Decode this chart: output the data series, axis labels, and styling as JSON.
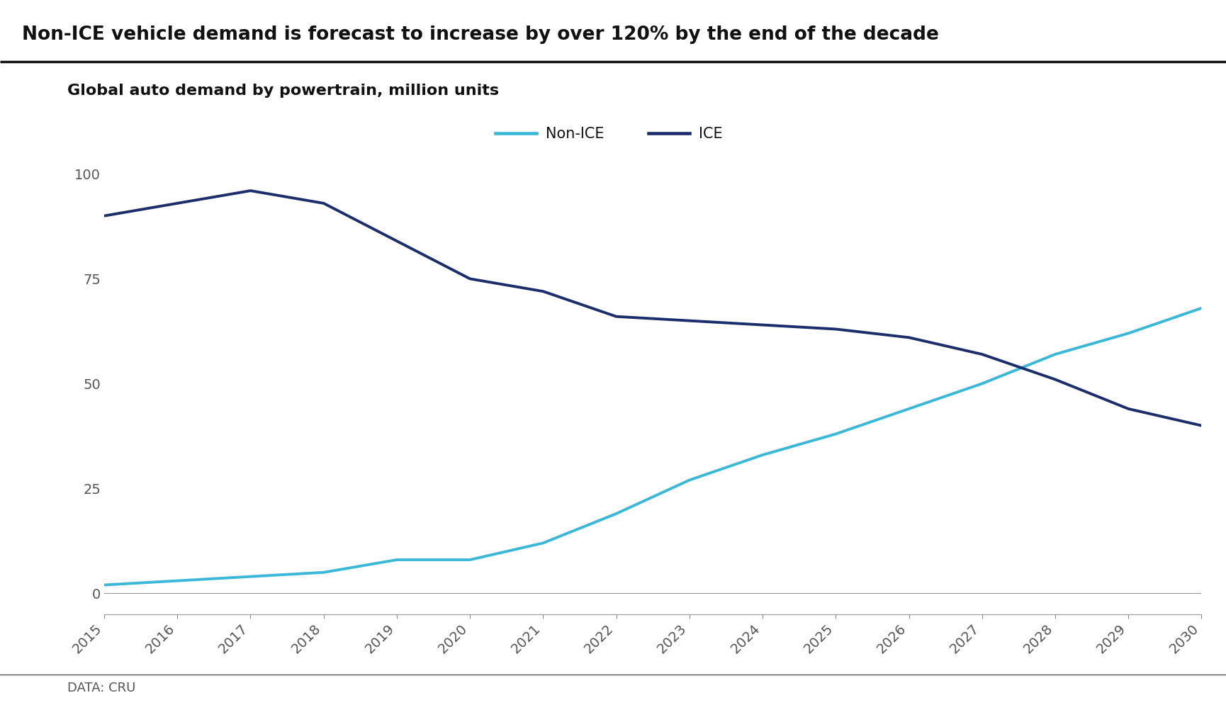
{
  "title": "Non-ICE vehicle demand is forecast to increase by over 120% by the end of the decade",
  "subtitle": "Global auto demand by powertrain, million units",
  "source": "DATA: CRU",
  "years": [
    2015,
    2016,
    2017,
    2018,
    2019,
    2020,
    2021,
    2022,
    2023,
    2024,
    2025,
    2026,
    2027,
    2028,
    2029,
    2030
  ],
  "non_ice": [
    2,
    3,
    4,
    5,
    8,
    8,
    12,
    19,
    27,
    33,
    38,
    44,
    50,
    57,
    62,
    68
  ],
  "ice": [
    90,
    93,
    96,
    93,
    84,
    75,
    72,
    66,
    65,
    64,
    63,
    61,
    57,
    51,
    44,
    40
  ],
  "non_ice_color": "#3BB8D8",
  "ice_color": "#1B2D6B",
  "non_ice_label": "Non-ICE",
  "ice_label": "ICE",
  "yticks": [
    0,
    25,
    50,
    75,
    100
  ],
  "ylim": [
    -5,
    112
  ],
  "background_color": "#FFFFFF",
  "title_fontsize": 19,
  "subtitle_fontsize": 16,
  "tick_fontsize": 14,
  "legend_fontsize": 15,
  "source_fontsize": 13,
  "line_width": 2.8
}
